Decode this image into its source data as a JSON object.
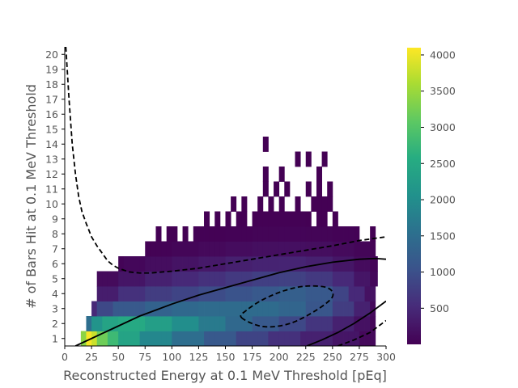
{
  "chart_data": {
    "type": "heatmap",
    "title": "",
    "xlabel": "Reconstructed Energy at 0.1 MeV Threshold [pEq]",
    "ylabel": "# of Bars Hit at 0.1 MeV Threshold",
    "xlim": [
      0,
      300
    ],
    "ylim": [
      0.5,
      20.5
    ],
    "xticks": [
      0,
      25,
      50,
      75,
      100,
      125,
      150,
      175,
      200,
      225,
      250,
      275,
      300
    ],
    "yticks": [
      1,
      2,
      3,
      4,
      5,
      6,
      7,
      8,
      9,
      10,
      11,
      12,
      13,
      14,
      15,
      16,
      17,
      18,
      19,
      20
    ],
    "colorbar": {
      "colormap": "viridis",
      "range": [
        1,
        4100
      ],
      "ticks": [
        500,
        1000,
        1500,
        2000,
        2500,
        3000,
        3500,
        4000
      ]
    },
    "bin_width": 5,
    "rows": [
      {
        "y": 1,
        "segments": [
          [
            15,
            20,
            3400
          ],
          [
            20,
            25,
            4050
          ],
          [
            25,
            30,
            3800
          ],
          [
            30,
            40,
            3200
          ],
          [
            40,
            50,
            2800
          ],
          [
            50,
            70,
            2400
          ],
          [
            70,
            100,
            1900
          ],
          [
            100,
            130,
            1500
          ],
          [
            130,
            160,
            1150
          ],
          [
            160,
            190,
            850
          ],
          [
            190,
            220,
            600
          ],
          [
            220,
            250,
            400
          ],
          [
            250,
            275,
            250
          ],
          [
            275,
            290,
            100
          ]
        ]
      },
      {
        "y": 2,
        "segments": [
          [
            20,
            25,
            1500
          ],
          [
            25,
            35,
            2100
          ],
          [
            35,
            50,
            2400
          ],
          [
            50,
            75,
            2500
          ],
          [
            75,
            100,
            2300
          ],
          [
            100,
            125,
            2000
          ],
          [
            125,
            150,
            1700
          ],
          [
            150,
            175,
            1400
          ],
          [
            175,
            200,
            1150
          ],
          [
            200,
            225,
            900
          ],
          [
            225,
            250,
            650
          ],
          [
            250,
            270,
            400
          ],
          [
            270,
            285,
            200
          ],
          [
            285,
            290,
            60
          ]
        ]
      },
      {
        "y": 3,
        "segments": [
          [
            25,
            30,
            500
          ],
          [
            30,
            45,
            900
          ],
          [
            45,
            75,
            1150
          ],
          [
            75,
            100,
            1300
          ],
          [
            100,
            125,
            1400
          ],
          [
            125,
            150,
            1450
          ],
          [
            150,
            175,
            1450
          ],
          [
            175,
            200,
            1450
          ],
          [
            200,
            225,
            1350
          ],
          [
            225,
            250,
            1100
          ],
          [
            250,
            270,
            750
          ],
          [
            270,
            285,
            400
          ],
          [
            285,
            290,
            100
          ]
        ]
      },
      {
        "y": 4,
        "segments": [
          [
            30,
            50,
            350
          ],
          [
            50,
            75,
            600
          ],
          [
            75,
            100,
            750
          ],
          [
            100,
            125,
            850
          ],
          [
            125,
            150,
            950
          ],
          [
            150,
            175,
            1050
          ],
          [
            175,
            200,
            1150
          ],
          [
            200,
            225,
            1250
          ],
          [
            225,
            250,
            1150
          ],
          [
            250,
            265,
            850
          ],
          [
            265,
            280,
            500
          ],
          [
            280,
            290,
            200
          ]
        ]
      },
      {
        "y": 5,
        "segments": [
          [
            30,
            50,
            120
          ],
          [
            50,
            75,
            250
          ],
          [
            75,
            100,
            400
          ],
          [
            100,
            125,
            500
          ],
          [
            125,
            150,
            600
          ],
          [
            150,
            175,
            700
          ],
          [
            175,
            200,
            780
          ],
          [
            200,
            225,
            800
          ],
          [
            225,
            250,
            700
          ],
          [
            250,
            270,
            500
          ],
          [
            270,
            285,
            250
          ],
          [
            285,
            292,
            80
          ]
        ]
      },
      {
        "y": 6,
        "segments": [
          [
            50,
            55,
            40
          ],
          [
            55,
            75,
            80
          ],
          [
            75,
            100,
            150
          ],
          [
            100,
            125,
            220
          ],
          [
            125,
            150,
            300
          ],
          [
            150,
            175,
            380
          ],
          [
            175,
            200,
            420
          ],
          [
            200,
            225,
            430
          ],
          [
            225,
            250,
            380
          ],
          [
            250,
            270,
            260
          ],
          [
            270,
            285,
            130
          ],
          [
            285,
            292,
            40
          ]
        ]
      },
      {
        "y": 7,
        "segments": [
          [
            75,
            90,
            20
          ],
          [
            90,
            100,
            30
          ],
          [
            100,
            125,
            60
          ],
          [
            125,
            150,
            100
          ],
          [
            150,
            175,
            140
          ],
          [
            175,
            200,
            170
          ],
          [
            200,
            225,
            180
          ],
          [
            225,
            250,
            160
          ],
          [
            250,
            270,
            110
          ],
          [
            270,
            285,
            60
          ],
          [
            285,
            290,
            20
          ]
        ]
      },
      {
        "y": 8,
        "segments": [
          [
            85,
            90,
            5
          ],
          [
            95,
            105,
            8
          ],
          [
            110,
            115,
            8
          ],
          [
            120,
            150,
            15
          ],
          [
            150,
            175,
            30
          ],
          [
            175,
            200,
            45
          ],
          [
            200,
            225,
            55
          ],
          [
            225,
            250,
            50
          ],
          [
            250,
            270,
            30
          ],
          [
            270,
            275,
            10
          ],
          [
            285,
            290,
            5
          ]
        ]
      },
      {
        "y": 9,
        "segments": [
          [
            130,
            135,
            5
          ],
          [
            140,
            145,
            5
          ],
          [
            150,
            155,
            5
          ],
          [
            160,
            170,
            6
          ],
          [
            175,
            180,
            6
          ],
          [
            180,
            225,
            10
          ],
          [
            225,
            230,
            6
          ],
          [
            235,
            240,
            6
          ],
          [
            240,
            245,
            6
          ],
          [
            250,
            255,
            5
          ]
        ]
      },
      {
        "y": 10,
        "segments": [
          [
            155,
            160,
            3
          ],
          [
            165,
            170,
            3
          ],
          [
            180,
            185,
            3
          ],
          [
            190,
            195,
            3
          ],
          [
            200,
            205,
            3
          ],
          [
            215,
            220,
            3
          ],
          [
            230,
            240,
            3
          ],
          [
            240,
            250,
            3
          ]
        ]
      },
      {
        "y": 11,
        "segments": [
          [
            185,
            190,
            2
          ],
          [
            195,
            200,
            2
          ],
          [
            205,
            210,
            2
          ],
          [
            225,
            230,
            2
          ],
          [
            235,
            240,
            2
          ],
          [
            245,
            250,
            2
          ]
        ]
      },
      {
        "y": 12,
        "segments": [
          [
            185,
            190,
            1
          ],
          [
            200,
            205,
            1
          ],
          [
            235,
            240,
            1
          ]
        ]
      },
      {
        "y": 13,
        "segments": [
          [
            215,
            220,
            1
          ],
          [
            225,
            230,
            1
          ],
          [
            240,
            245,
            1
          ]
        ]
      },
      {
        "y": 14,
        "segments": [
          [
            185,
            190,
            1
          ]
        ]
      }
    ],
    "overlays": [
      {
        "name": "",
        "style": "dashed",
        "points": [
          [
            1,
            20.5
          ],
          [
            4,
            17
          ],
          [
            7,
            14
          ],
          [
            10,
            12
          ],
          [
            13,
            10.5
          ],
          [
            16,
            9.5
          ],
          [
            20,
            8.7
          ],
          [
            25,
            7.8
          ],
          [
            30,
            7.2
          ],
          [
            35,
            6.7
          ],
          [
            40,
            6.2
          ],
          [
            45,
            5.9
          ],
          [
            50,
            5.7
          ],
          [
            60,
            5.45
          ],
          [
            70,
            5.38
          ],
          [
            80,
            5.38
          ],
          [
            100,
            5.5
          ],
          [
            125,
            5.7
          ],
          [
            150,
            6.0
          ],
          [
            175,
            6.3
          ],
          [
            200,
            6.6
          ],
          [
            225,
            6.9
          ],
          [
            250,
            7.2
          ],
          [
            275,
            7.55
          ],
          [
            300,
            7.8
          ]
        ]
      },
      {
        "name": "",
        "style": "solid",
        "points": [
          [
            10,
            0.5
          ],
          [
            25,
            1.0
          ],
          [
            40,
            1.5
          ],
          [
            55,
            2.0
          ],
          [
            70,
            2.5
          ],
          [
            85,
            2.9
          ],
          [
            100,
            3.3
          ],
          [
            125,
            3.9
          ],
          [
            150,
            4.4
          ],
          [
            175,
            4.9
          ],
          [
            200,
            5.4
          ],
          [
            225,
            5.8
          ],
          [
            250,
            6.1
          ],
          [
            275,
            6.3
          ],
          [
            290,
            6.35
          ],
          [
            300,
            6.3
          ]
        ]
      },
      {
        "name": "",
        "style": "dashed",
        "closed": true,
        "points": [
          [
            165,
            2.4
          ],
          [
            185,
            1.8
          ],
          [
            210,
            2.0
          ],
          [
            235,
            2.9
          ],
          [
            250,
            3.8
          ],
          [
            245,
            4.4
          ],
          [
            225,
            4.5
          ],
          [
            205,
            4.2
          ],
          [
            185,
            3.6
          ],
          [
            170,
            2.9
          ]
        ]
      },
      {
        "name": "",
        "style": "solid",
        "points": [
          [
            226,
            0.5
          ],
          [
            240,
            0.9
          ],
          [
            255,
            1.4
          ],
          [
            270,
            2.0
          ],
          [
            285,
            2.7
          ],
          [
            300,
            3.5
          ]
        ]
      },
      {
        "name": "",
        "style": "dashed",
        "points": [
          [
            255,
            0.5
          ],
          [
            270,
            0.9
          ],
          [
            285,
            1.4
          ],
          [
            300,
            2.2
          ]
        ]
      }
    ]
  }
}
